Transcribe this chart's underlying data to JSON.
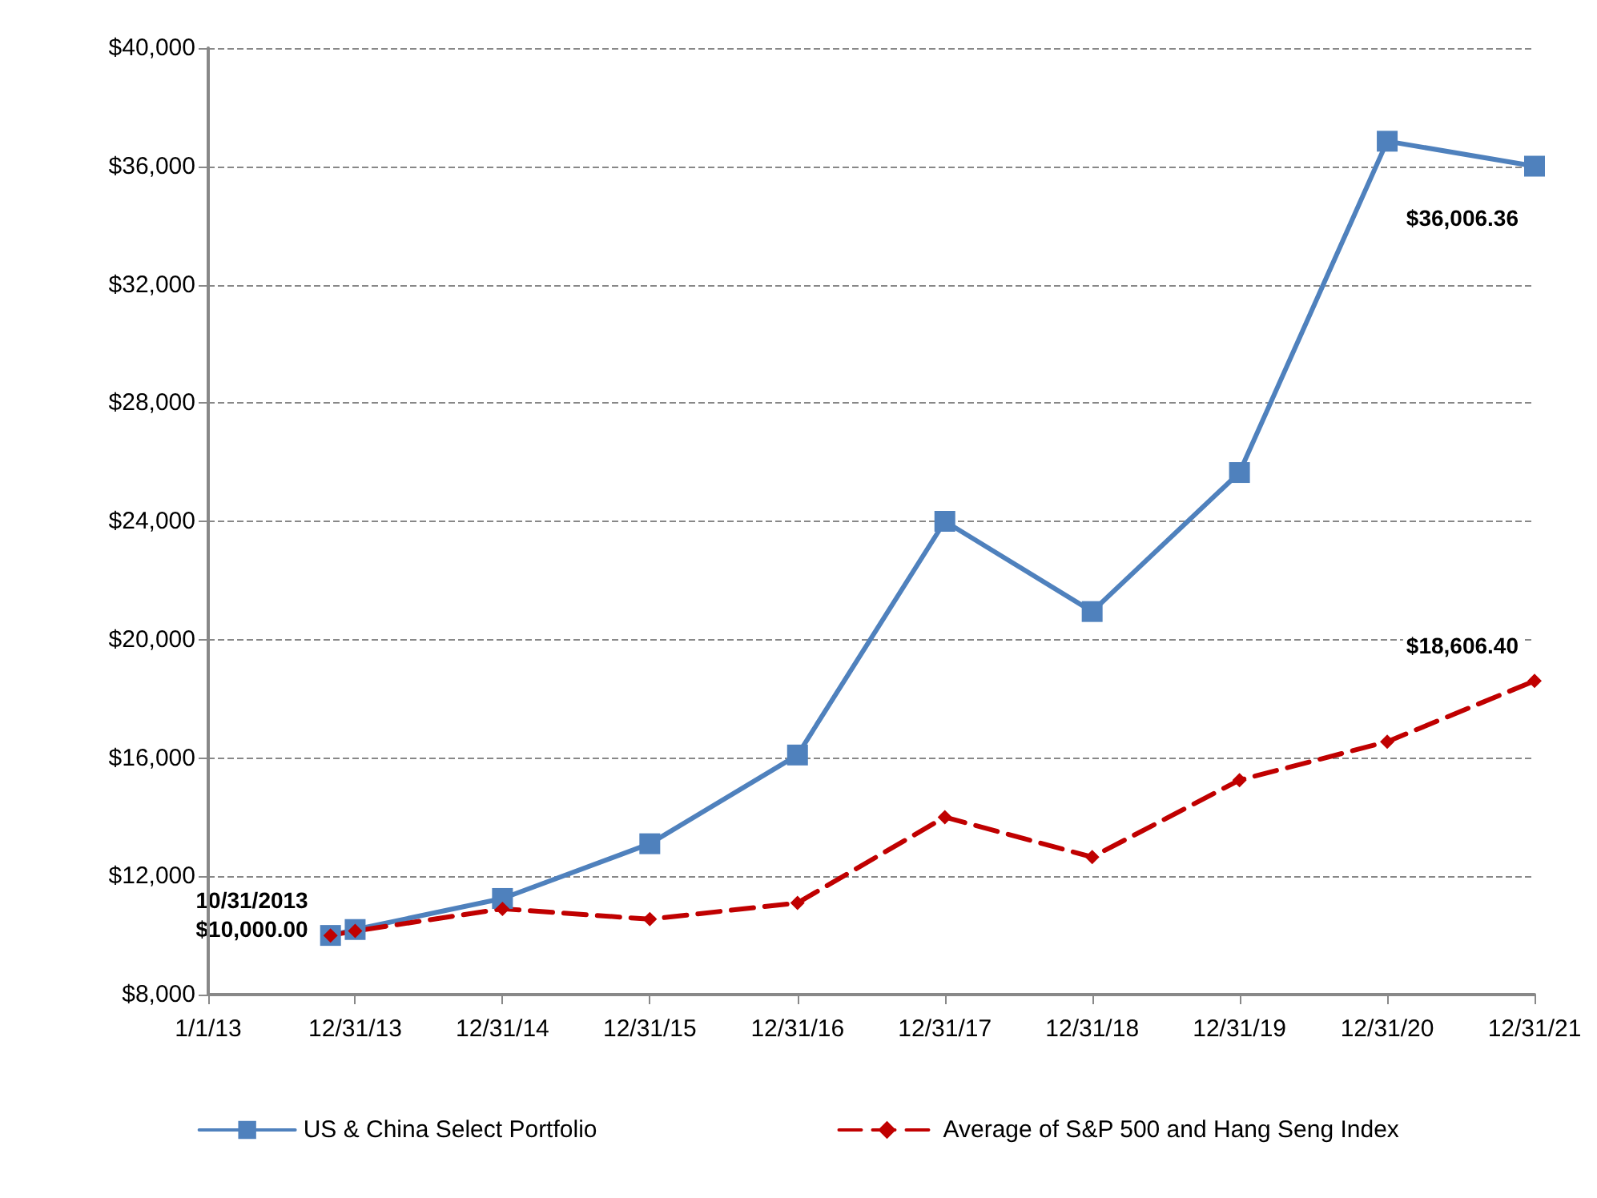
{
  "chart_data": {
    "type": "line",
    "x": [
      "2013-10-31",
      "2013-12-31",
      "2014-12-31",
      "2015-12-31",
      "2016-12-31",
      "2017-12-31",
      "2018-12-31",
      "2019-12-31",
      "2020-12-31",
      "2021-12-31"
    ],
    "series": [
      {
        "name": "US & China Select Portfolio",
        "color": "#4f81bd",
        "marker": "square",
        "line_style": "solid",
        "values": [
          10000,
          10200,
          11250,
          13100,
          16100,
          24000,
          20950,
          25650,
          36850,
          36006.36
        ]
      },
      {
        "name": "Average of S&P 500 and Hang Seng Index",
        "color": "#c00000",
        "marker": "diamond",
        "line_style": "dashed",
        "values": [
          10000,
          10150,
          10900,
          10550,
          11100,
          14000,
          12650,
          15250,
          16550,
          18606.4
        ]
      }
    ],
    "xlim": [
      "2013-01-01",
      "2021-12-31"
    ],
    "xticks": [
      {
        "value": "2013-01-01",
        "label": "1/1/13"
      },
      {
        "value": "2013-12-31",
        "label": "12/31/13"
      },
      {
        "value": "2014-12-31",
        "label": "12/31/14"
      },
      {
        "value": "2015-12-31",
        "label": "12/31/15"
      },
      {
        "value": "2016-12-31",
        "label": "12/31/16"
      },
      {
        "value": "2017-12-31",
        "label": "12/31/17"
      },
      {
        "value": "2018-12-31",
        "label": "12/31/18"
      },
      {
        "value": "2019-12-31",
        "label": "12/31/19"
      },
      {
        "value": "2020-12-31",
        "label": "12/31/20"
      },
      {
        "value": "2021-12-31",
        "label": "12/31/21"
      }
    ],
    "ylim": [
      8000,
      40000
    ],
    "yticks": [
      {
        "value": 8000,
        "label": "$8,000"
      },
      {
        "value": 12000,
        "label": "$12,000"
      },
      {
        "value": 16000,
        "label": "$16,000"
      },
      {
        "value": 20000,
        "label": "$20,000"
      },
      {
        "value": 24000,
        "label": "$24,000"
      },
      {
        "value": 28000,
        "label": "$28,000"
      },
      {
        "value": 32000,
        "label": "$32,000"
      },
      {
        "value": 36000,
        "label": "$36,000"
      },
      {
        "value": 40000,
        "label": "$40,000"
      }
    ],
    "annotations": [
      {
        "text": "10/31/2013\n$10,000.00",
        "x": "2013-10-31",
        "y": 10000
      },
      {
        "text": "$36,006.36",
        "x": "2021-12-31",
        "y": 36006.36
      },
      {
        "text": "$18,606.40",
        "x": "2021-12-31",
        "y": 18606.4
      }
    ],
    "grid": "y",
    "legend": "bottom"
  }
}
